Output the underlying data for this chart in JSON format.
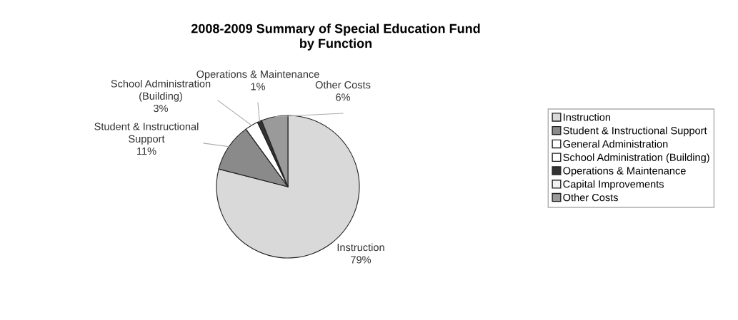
{
  "chart_data": {
    "type": "pie",
    "title": "2008-2009 Summary of Special Education Fund\nby Function",
    "categories": [
      "Instruction",
      "Student & Instructional Support",
      "General Administration",
      "School Administration (Building)",
      "Operations & Maintenance",
      "Capital Improvements",
      "Other Costs"
    ],
    "values": [
      79,
      11,
      0,
      3,
      1,
      0,
      6
    ],
    "value_labels": [
      "79%",
      "11%",
      null,
      "3%",
      "1%",
      null,
      "6%"
    ],
    "colors": [
      "#d9d9d9",
      "#8a8a8a",
      "#ffffff",
      "#ffffff",
      "#333333",
      "#f2f2f2",
      "#9a9a9a"
    ],
    "legend": "right"
  }
}
